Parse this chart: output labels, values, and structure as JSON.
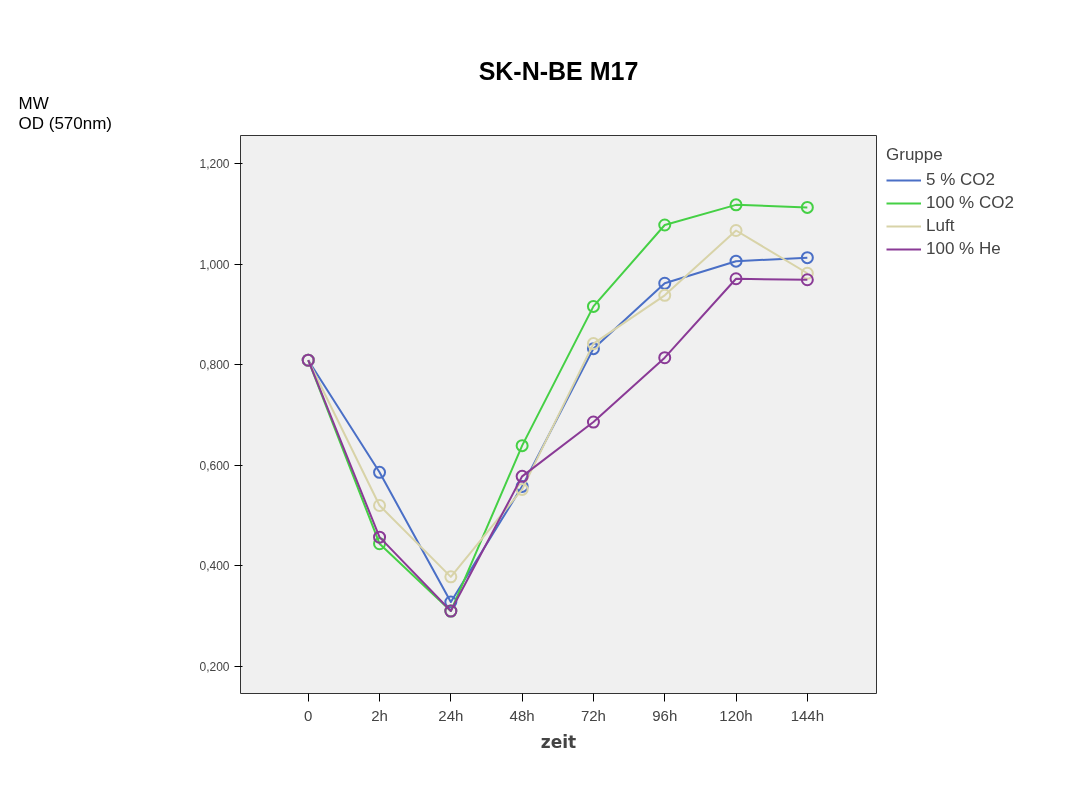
{
  "chart_data": {
    "type": "line",
    "title": "SK-N-BE M17",
    "xlabel": "zeit",
    "annotations": [
      "MW\nOD (570nm)"
    ],
    "legend_title": "Gruppe",
    "legend": "right",
    "marker": "circle",
    "line_style": "solid",
    "grid": false,
    "categories": [
      "0",
      "2h",
      "24h",
      "48h",
      "72h",
      "96h",
      "120h",
      "144h"
    ],
    "ylim": [
      0.146,
      1.256
    ],
    "yticks": [
      {
        "value": 0.2,
        "label": "0,200"
      },
      {
        "value": 0.4,
        "label": "0,400"
      },
      {
        "value": 0.6,
        "label": "0,600"
      },
      {
        "value": 0.8,
        "label": "0,800"
      },
      {
        "value": 1.0,
        "label": "1,000"
      },
      {
        "value": 1.2,
        "label": "1,200"
      }
    ],
    "series": [
      {
        "name": "5 % CO2",
        "color": "#4a6fc6",
        "values": [
          0.809,
          0.586,
          0.328,
          0.558,
          0.832,
          0.962,
          1.006,
          1.013
        ]
      },
      {
        "name": "100 % CO2",
        "color": "#45d045",
        "values": [
          0.809,
          0.444,
          0.31,
          0.639,
          0.916,
          1.078,
          1.118,
          1.113
        ]
      },
      {
        "name": "Luft",
        "color": "#d8d3a8",
        "values": [
          0.809,
          0.52,
          0.378,
          0.552,
          0.842,
          0.938,
          1.067,
          0.982
        ]
      },
      {
        "name": "100 % He",
        "color": "#8a3a96",
        "values": [
          0.809,
          0.457,
          0.31,
          0.578,
          0.686,
          0.814,
          0.971,
          0.969
        ]
      }
    ]
  }
}
